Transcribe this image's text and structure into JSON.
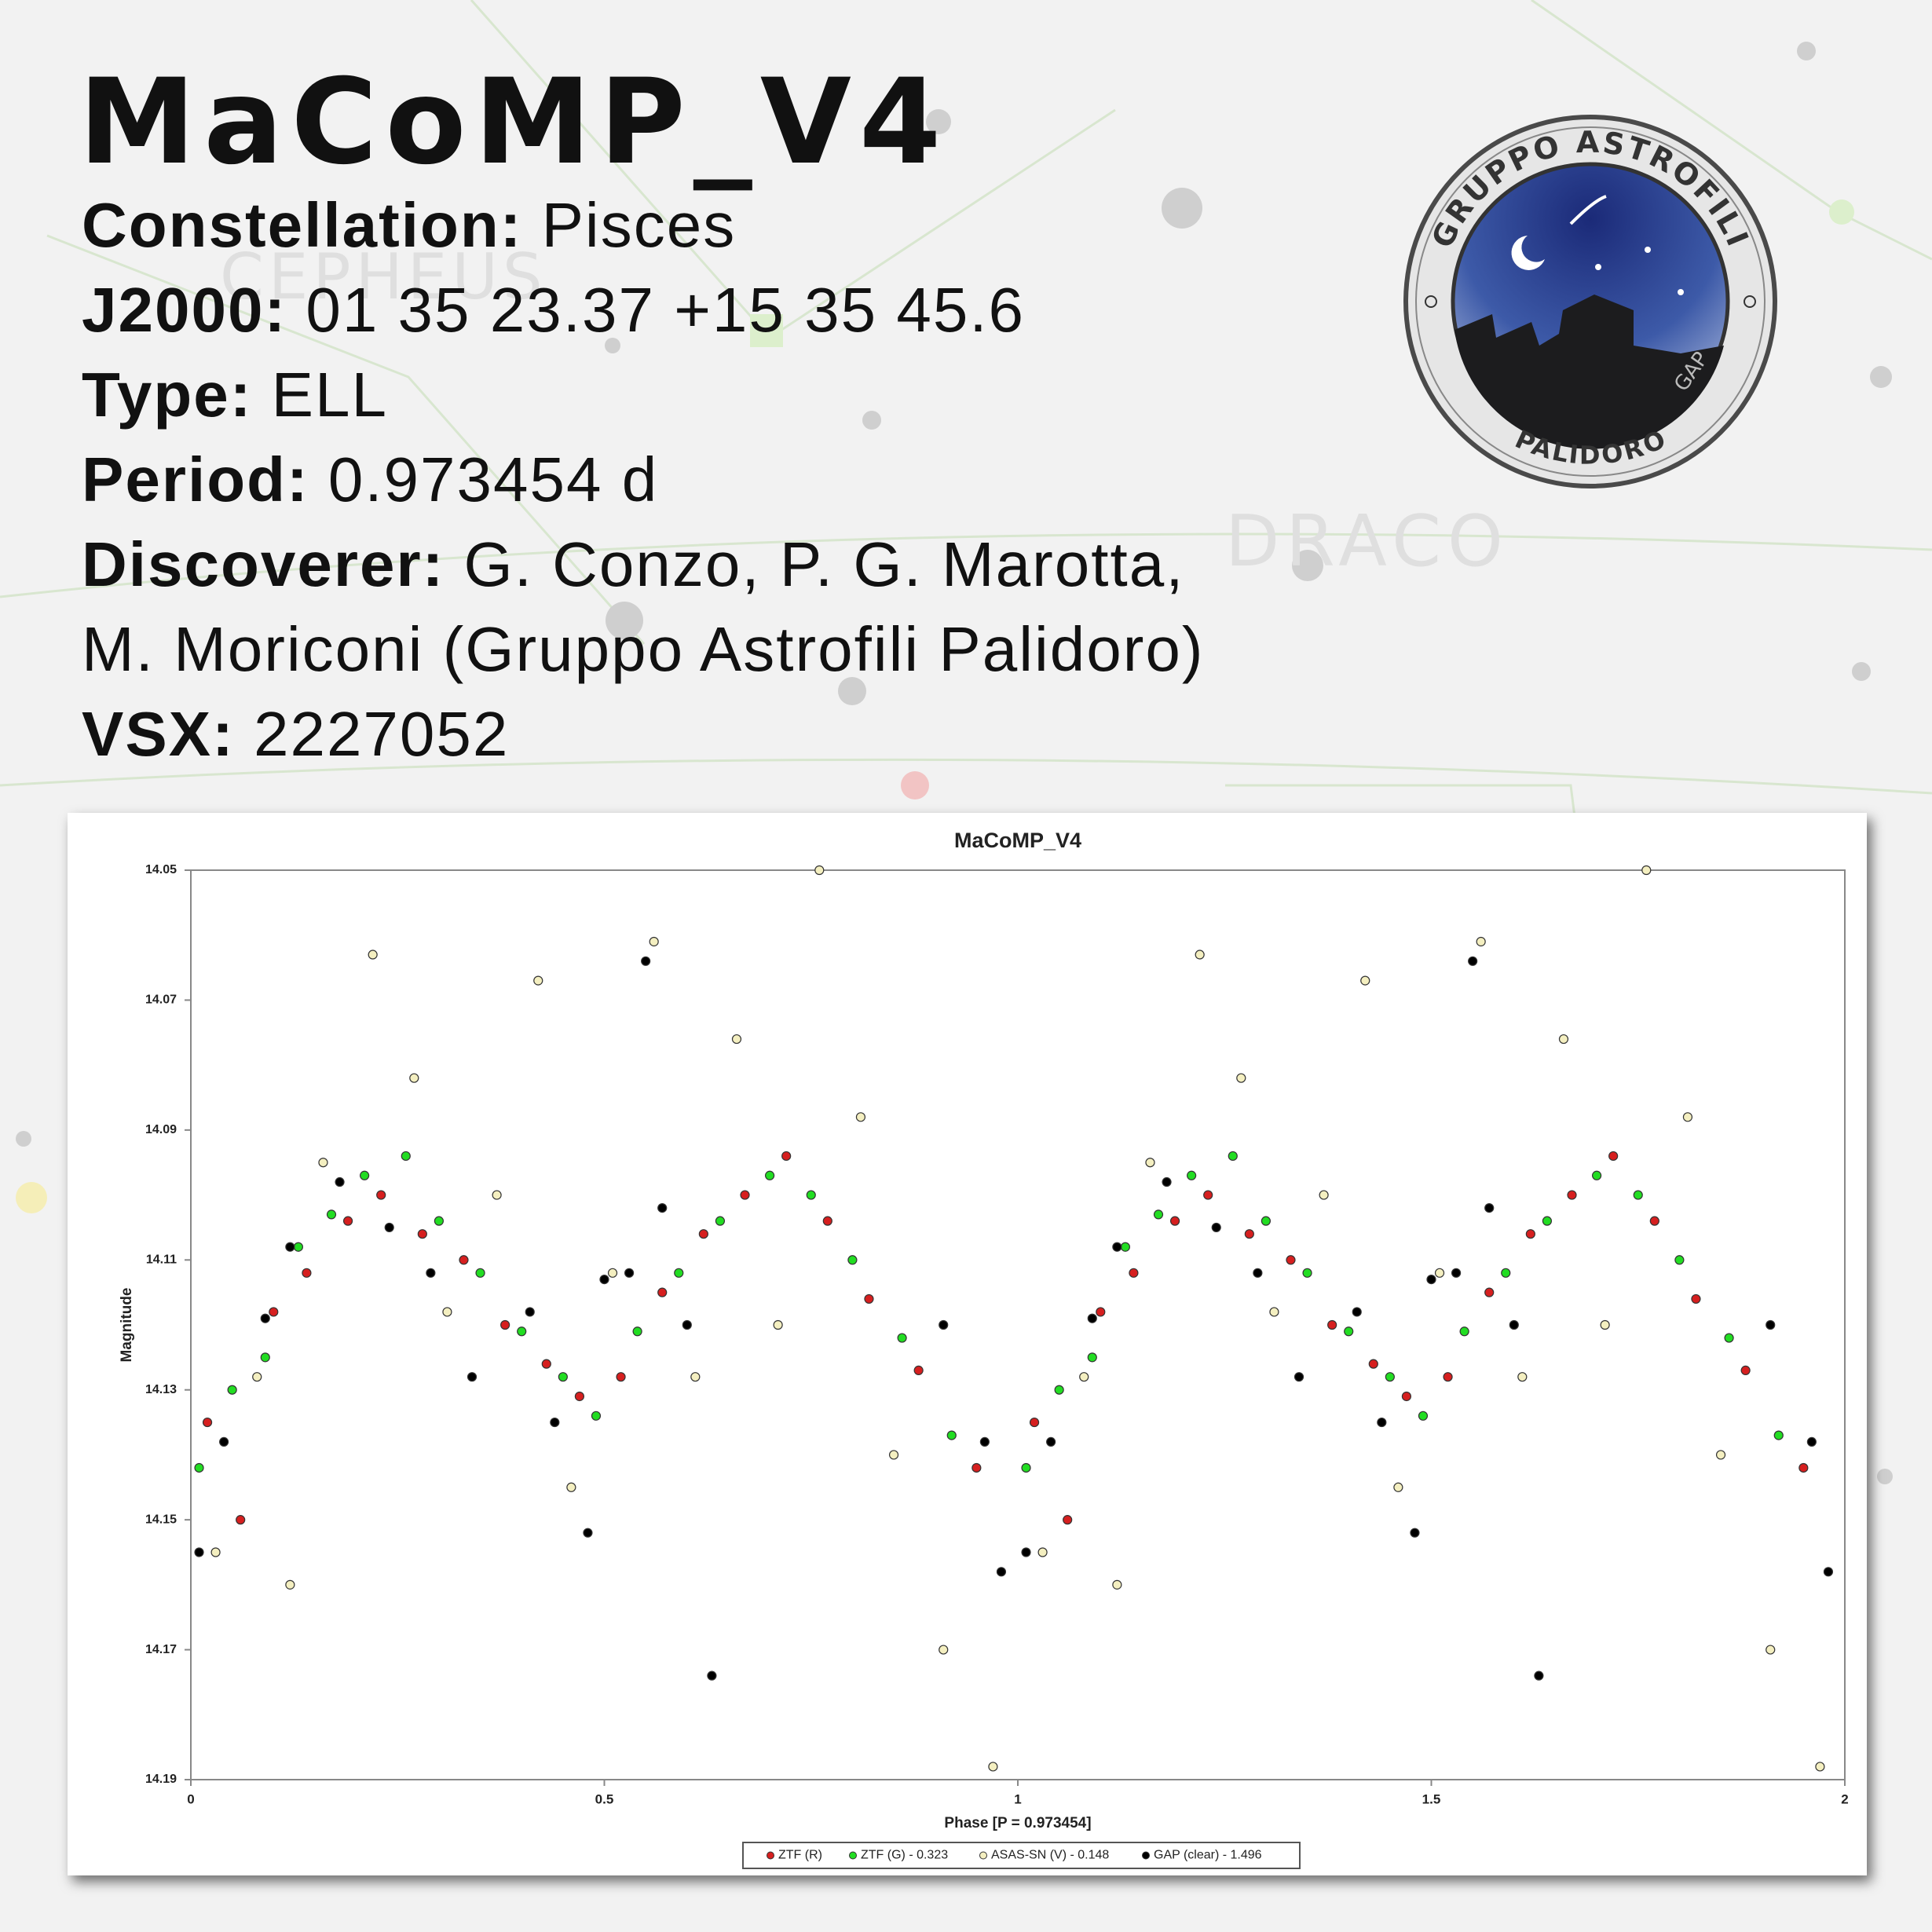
{
  "background": {
    "labels": [
      "CEPHEUS",
      "DRACO"
    ]
  },
  "header": {
    "title": "MaCoMP_V4",
    "fields": [
      {
        "label": "Constellation:",
        "lines": [
          "Pisces"
        ]
      },
      {
        "label": "J2000:",
        "lines": [
          "01 35 23.37 +15 35 45.6"
        ]
      },
      {
        "label": "Type:",
        "lines": [
          "ELL"
        ]
      },
      {
        "label": "Period:",
        "lines": [
          "0.973454 d"
        ]
      },
      {
        "label": "Discoverer:",
        "lines": [
          "G. Conzo, P. G. Marotta,",
          "M. Moriconi (Gruppo Astrofili Palidoro)"
        ]
      },
      {
        "label": "VSX:",
        "lines": [
          "2227052"
        ]
      }
    ]
  },
  "logo": {
    "top": "GRUPPO ASTROFILI",
    "bottom": "PALIDORO",
    "side": "GAP"
  },
  "chart_data": {
    "type": "scatter",
    "title": "MaCoMP_V4",
    "x_label": "Phase [P = 0.973454]",
    "y_label": "Magnitude",
    "xlim": [
      0,
      2
    ],
    "xticks": [
      0,
      0.5,
      1,
      1.5,
      2
    ],
    "ylim": [
      14.05,
      14.19
    ],
    "yticks": [
      14.05,
      14.07,
      14.09,
      14.11,
      14.13,
      14.15,
      14.17,
      14.19
    ],
    "y_reversed": true,
    "grid": false,
    "legend": "bottom",
    "series": [
      {
        "name": "ZTF (R)",
        "color": "#d61f1f",
        "x": [
          0.02,
          0.06,
          0.1,
          0.14,
          0.19,
          0.23,
          0.28,
          0.33,
          0.38,
          0.43,
          0.47,
          0.52,
          0.57,
          0.62,
          0.67,
          0.72,
          0.77,
          0.82,
          0.88,
          0.95,
          1.02,
          1.06,
          1.1,
          1.14,
          1.19,
          1.23,
          1.28,
          1.33,
          1.38,
          1.43,
          1.47,
          1.52,
          1.57,
          1.62,
          1.67,
          1.72,
          1.77,
          1.82,
          1.88,
          1.95
        ],
        "values": [
          14.135,
          14.15,
          14.118,
          14.112,
          14.104,
          14.1,
          14.106,
          14.11,
          14.12,
          14.126,
          14.131,
          14.128,
          14.115,
          14.106,
          14.1,
          14.094,
          14.104,
          14.116,
          14.127,
          14.142,
          14.135,
          14.15,
          14.118,
          14.112,
          14.104,
          14.1,
          14.106,
          14.11,
          14.12,
          14.126,
          14.131,
          14.128,
          14.115,
          14.106,
          14.1,
          14.094,
          14.104,
          14.116,
          14.127,
          14.142
        ]
      },
      {
        "name": "ZTF (G) - 0.323",
        "color": "#22dd22",
        "x": [
          0.01,
          0.05,
          0.09,
          0.13,
          0.17,
          0.21,
          0.26,
          0.3,
          0.35,
          0.4,
          0.45,
          0.49,
          0.54,
          0.59,
          0.64,
          0.7,
          0.75,
          0.8,
          0.86,
          0.92,
          1.01,
          1.05,
          1.09,
          1.13,
          1.17,
          1.21,
          1.26,
          1.3,
          1.35,
          1.4,
          1.45,
          1.49,
          1.54,
          1.59,
          1.64,
          1.7,
          1.75,
          1.8,
          1.86,
          1.92
        ],
        "values": [
          14.142,
          14.13,
          14.125,
          14.108,
          14.103,
          14.097,
          14.094,
          14.104,
          14.112,
          14.121,
          14.128,
          14.134,
          14.121,
          14.112,
          14.104,
          14.097,
          14.1,
          14.11,
          14.122,
          14.137,
          14.142,
          14.13,
          14.125,
          14.108,
          14.103,
          14.097,
          14.094,
          14.104,
          14.112,
          14.121,
          14.128,
          14.134,
          14.121,
          14.112,
          14.104,
          14.097,
          14.1,
          14.11,
          14.122,
          14.137
        ]
      },
      {
        "name": "ASAS-SN (V) - 0.148",
        "color": "#f4efc0",
        "x": [
          0.03,
          0.08,
          0.12,
          0.16,
          0.22,
          0.27,
          0.31,
          0.37,
          0.42,
          0.46,
          0.51,
          0.56,
          0.61,
          0.66,
          0.71,
          0.76,
          0.81,
          0.85,
          0.91,
          0.97,
          1.03,
          1.08,
          1.12,
          1.16,
          1.22,
          1.27,
          1.31,
          1.37,
          1.42,
          1.46,
          1.51,
          1.56,
          1.61,
          1.66,
          1.71,
          1.76,
          1.81,
          1.85,
          1.91,
          1.97
        ],
        "values": [
          14.155,
          14.128,
          14.16,
          14.095,
          14.063,
          14.082,
          14.118,
          14.1,
          14.067,
          14.145,
          14.112,
          14.061,
          14.128,
          14.076,
          14.12,
          14.05,
          14.088,
          14.14,
          14.17,
          14.188,
          14.155,
          14.128,
          14.16,
          14.095,
          14.063,
          14.082,
          14.118,
          14.1,
          14.067,
          14.145,
          14.112,
          14.061,
          14.128,
          14.076,
          14.12,
          14.05,
          14.088,
          14.14,
          14.17,
          14.188
        ]
      },
      {
        "name": "GAP (clear) - 1.496",
        "color": "#000000",
        "x": [
          0.01,
          0.04,
          0.09,
          0.12,
          0.18,
          0.24,
          0.29,
          0.34,
          0.41,
          0.44,
          0.48,
          0.5,
          0.53,
          0.55,
          0.57,
          0.6,
          0.63,
          0.91,
          0.96,
          0.98,
          1.01,
          1.04,
          1.09,
          1.12,
          1.18,
          1.24,
          1.29,
          1.34,
          1.41,
          1.44,
          1.48,
          1.5,
          1.53,
          1.55,
          1.57,
          1.6,
          1.63,
          1.91,
          1.96,
          1.98
        ],
        "values": [
          14.155,
          14.138,
          14.119,
          14.108,
          14.098,
          14.105,
          14.112,
          14.128,
          14.118,
          14.135,
          14.152,
          14.113,
          14.112,
          14.064,
          14.102,
          14.12,
          14.174,
          14.12,
          14.138,
          14.158,
          14.155,
          14.138,
          14.119,
          14.108,
          14.098,
          14.105,
          14.112,
          14.128,
          14.118,
          14.135,
          14.152,
          14.113,
          14.112,
          14.064,
          14.102,
          14.12,
          14.174,
          14.12,
          14.138,
          14.158
        ]
      }
    ]
  }
}
